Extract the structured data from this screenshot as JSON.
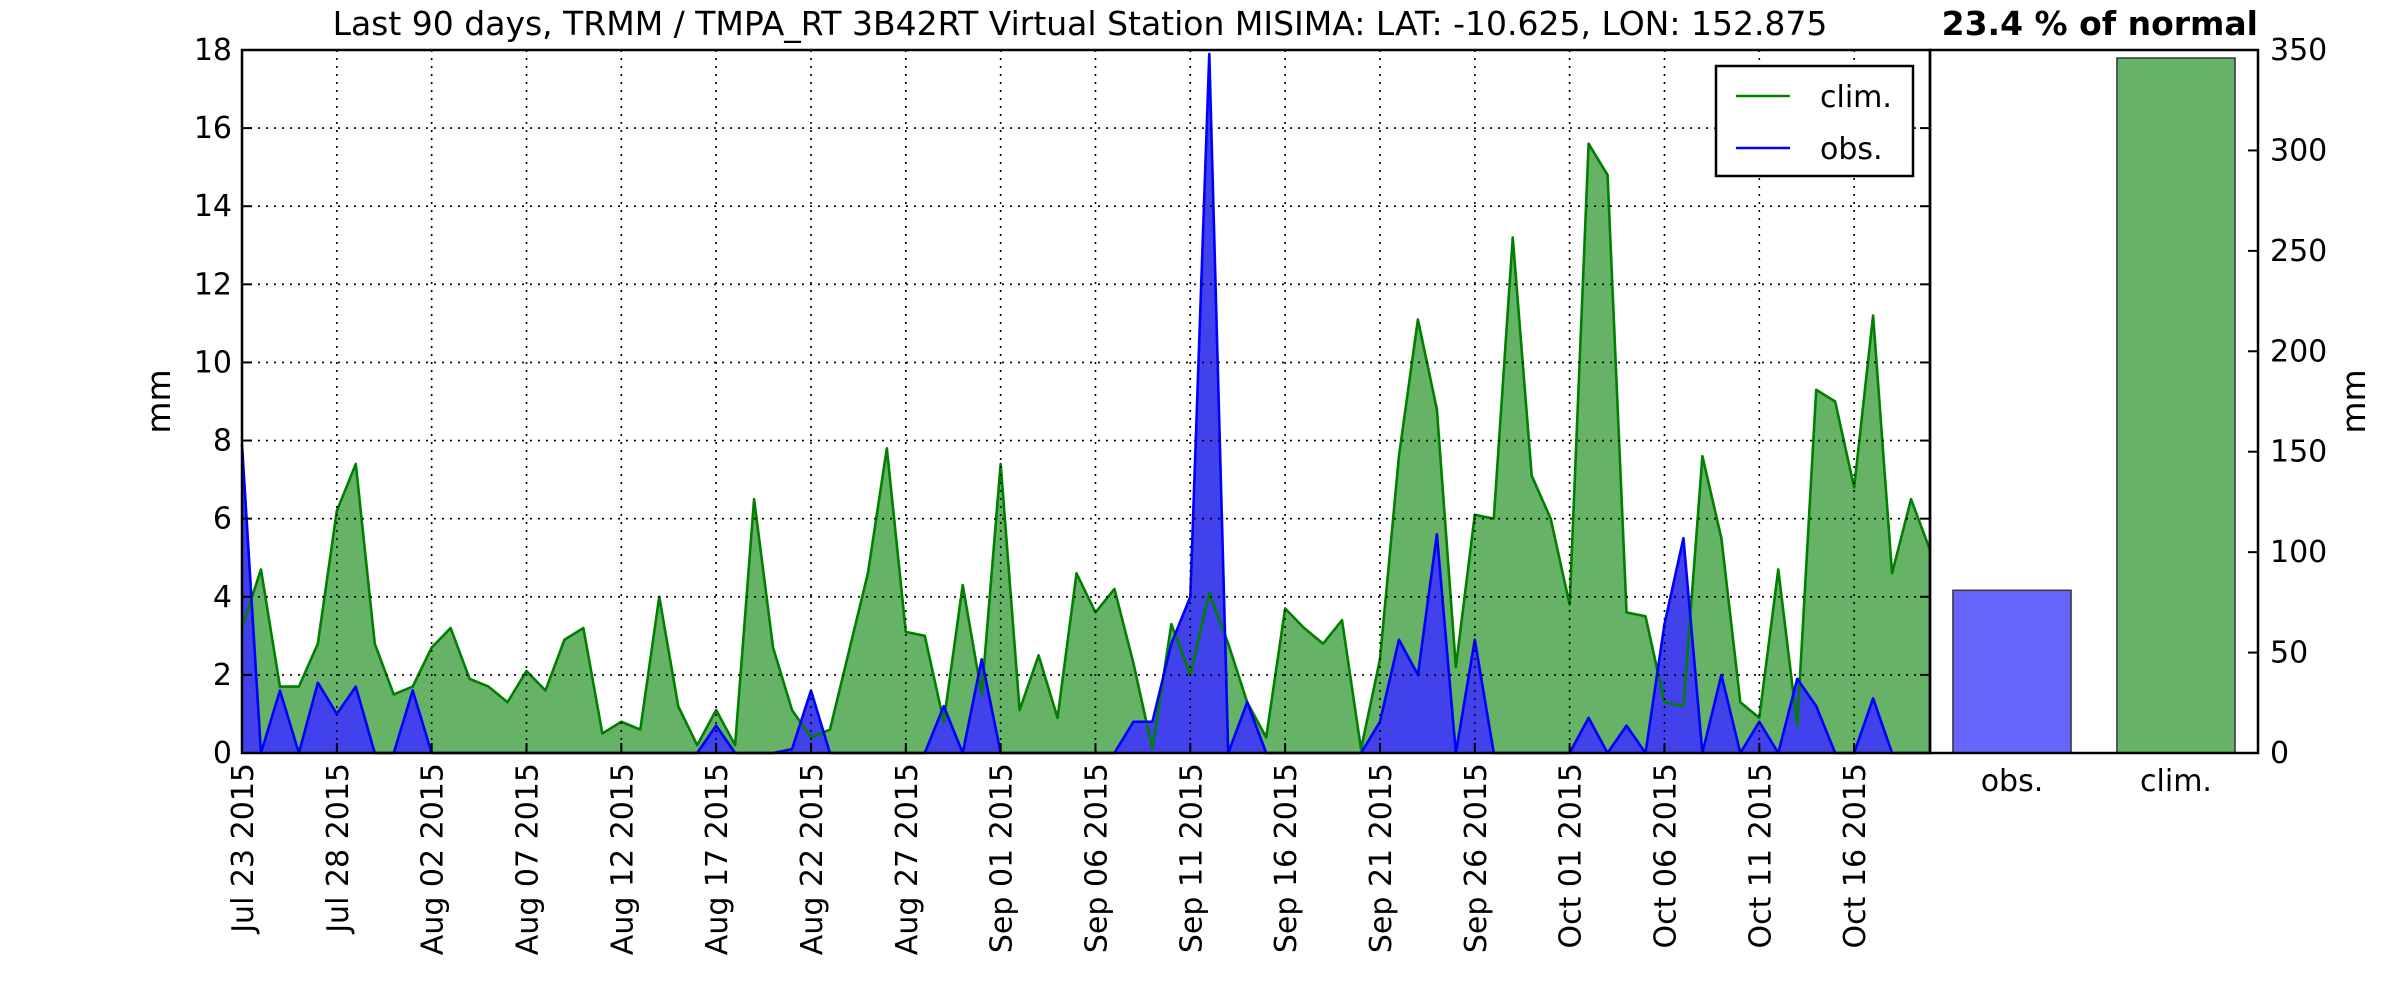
{
  "chart_data": [
    {
      "type": "area",
      "title": "Last 90 days, TRMM / TMPA_RT 3B42RT Virtual Station MISIMA: LAT: -10.625, LON: 152.875",
      "xlabel": "",
      "ylabel": "mm",
      "ylim": [
        0,
        18
      ],
      "yticks": [
        0,
        2,
        4,
        6,
        8,
        10,
        12,
        14,
        16,
        18
      ],
      "x_start": "Jul 23 2015",
      "x_days": 90,
      "xticks": [
        {
          "day": 0,
          "label": "Jul 23 2015"
        },
        {
          "day": 5,
          "label": "Jul 28 2015"
        },
        {
          "day": 10,
          "label": "Aug 02 2015"
        },
        {
          "day": 15,
          "label": "Aug 07 2015"
        },
        {
          "day": 20,
          "label": "Aug 12 2015"
        },
        {
          "day": 25,
          "label": "Aug 17 2015"
        },
        {
          "day": 30,
          "label": "Aug 22 2015"
        },
        {
          "day": 35,
          "label": "Aug 27 2015"
        },
        {
          "day": 40,
          "label": "Sep 01 2015"
        },
        {
          "day": 45,
          "label": "Sep 06 2015"
        },
        {
          "day": 50,
          "label": "Sep 11 2015"
        },
        {
          "day": 55,
          "label": "Sep 16 2015"
        },
        {
          "day": 60,
          "label": "Sep 21 2015"
        },
        {
          "day": 65,
          "label": "Sep 26 2015"
        },
        {
          "day": 70,
          "label": "Oct 01 2015"
        },
        {
          "day": 75,
          "label": "Oct 06 2015"
        },
        {
          "day": 80,
          "label": "Oct 11 2015"
        },
        {
          "day": 85,
          "label": "Oct 16 2015"
        }
      ],
      "grid": true,
      "legend_position": "top-right",
      "series": [
        {
          "name": "clim.",
          "color": "#008000",
          "fill": "#66b266",
          "values": [
            3.2,
            4.7,
            1.7,
            1.7,
            2.8,
            6.2,
            7.4,
            2.8,
            1.5,
            1.7,
            2.7,
            3.2,
            1.9,
            1.7,
            1.3,
            2.1,
            1.6,
            2.9,
            3.2,
            0.5,
            0.8,
            0.6,
            4.0,
            1.2,
            0.2,
            1.1,
            0.2,
            6.5,
            2.7,
            1.1,
            0.4,
            0.6,
            2.6,
            4.6,
            7.8,
            3.1,
            3.0,
            0.8,
            4.3,
            1.5,
            7.4,
            1.1,
            2.5,
            0.9,
            4.6,
            3.6,
            4.2,
            2.3,
            0.1,
            3.3,
            2.0,
            4.1,
            2.8,
            1.3,
            0.4,
            3.7,
            3.2,
            2.8,
            3.4,
            0.1,
            2.4,
            7.6,
            11.1,
            8.8,
            2.2,
            6.1,
            6.0,
            13.2,
            7.1,
            6.0,
            3.8,
            15.6,
            14.8,
            3.6,
            3.5,
            1.3,
            1.2,
            7.6,
            5.5,
            1.3,
            0.9,
            4.7,
            0.7,
            9.3,
            9.0,
            6.8,
            11.2,
            4.6,
            6.5,
            5.2
          ]
        },
        {
          "name": "obs.",
          "color": "#0000ff",
          "fill": "#6666ff",
          "values": [
            7.9,
            0.0,
            1.6,
            0.0,
            1.8,
            1.0,
            1.7,
            0.0,
            0.0,
            1.6,
            0.0,
            0.0,
            0.0,
            0.0,
            0.0,
            0.0,
            0.0,
            0.0,
            0.0,
            0.0,
            0.0,
            0.0,
            0.0,
            0.0,
            0.0,
            0.7,
            0.0,
            0.0,
            0.0,
            0.1,
            1.6,
            0.0,
            0.0,
            0.0,
            0.0,
            0.0,
            0.0,
            1.2,
            0.0,
            2.4,
            0.0,
            0.0,
            0.0,
            0.0,
            0.0,
            0.0,
            0.0,
            0.8,
            0.8,
            2.8,
            4.0,
            17.9,
            0.0,
            1.3,
            0.0,
            0.0,
            0.0,
            0.0,
            0.0,
            0.0,
            0.8,
            2.9,
            2.0,
            5.6,
            0.0,
            2.9,
            0.0,
            0.0,
            0.0,
            0.0,
            0.0,
            0.9,
            0.0,
            0.7,
            0.0,
            3.3,
            5.5,
            0.0,
            2.0,
            0.0,
            0.8,
            0.0,
            1.9,
            1.2,
            0.0,
            0.0,
            1.4,
            0.0,
            0.0,
            0.0
          ]
        }
      ]
    },
    {
      "type": "bar",
      "title": "23.4 % of normal",
      "xlabel": "",
      "ylabel": "mm",
      "ylim": [
        0,
        350
      ],
      "yticks": [
        0,
        50,
        100,
        150,
        200,
        250,
        300,
        350
      ],
      "categories": [
        "obs.",
        "clim."
      ],
      "values": [
        81,
        346
      ],
      "colors": [
        "#6666ff",
        "#66b266"
      ]
    }
  ]
}
